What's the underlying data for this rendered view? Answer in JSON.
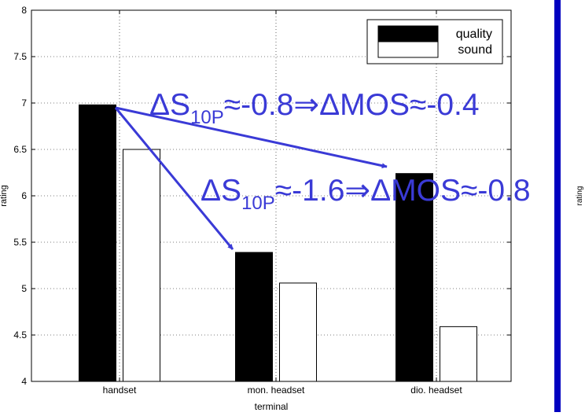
{
  "chart_data": {
    "type": "bar",
    "categories": [
      "handset",
      "mon. headset",
      "dio. headset"
    ],
    "series": [
      {
        "name": "quality",
        "values": [
          6.98,
          5.39,
          6.24
        ],
        "color": "#000000"
      },
      {
        "name": "sound",
        "values": [
          6.5,
          5.06,
          4.59
        ],
        "color": "#ffffff"
      }
    ],
    "xlabel": "terminal",
    "ylabel": "rating",
    "ylim": [
      4,
      8
    ],
    "yticks": [
      "4",
      "4.5",
      "5",
      "5.5",
      "6",
      "6.5",
      "7",
      "7.5",
      "8"
    ],
    "grid": true,
    "legend_position": "top-right",
    "annotations": {
      "a1": {
        "delta": "ΔS",
        "sub": "10P",
        "rest": "≈-0.8⇒ΔMOS≈-0.4"
      },
      "a2": {
        "delta": "ΔS",
        "sub": "10P",
        "rest": "≈-1.6⇒ΔMOS≈-0.8"
      }
    },
    "annotation_color": "#3a3ad6",
    "side_ylabel": "rating",
    "side_bar_color": "#0000c0"
  }
}
